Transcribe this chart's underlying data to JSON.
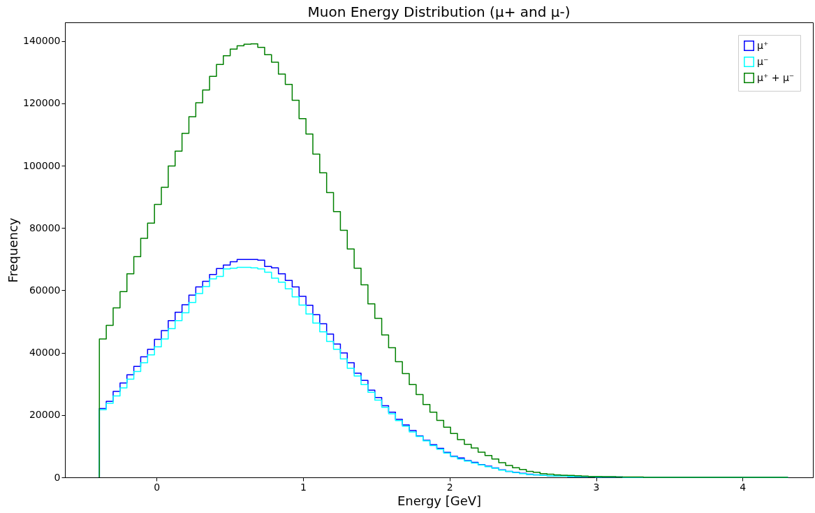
{
  "chart_data": {
    "type": "histogram",
    "title": "Muon Energy Distribution (μ+ and μ-)",
    "xlabel": "Energy [GeV]",
    "ylabel": "Frequency",
    "bins": [
      -0.39,
      -0.343,
      -0.296,
      -0.249,
      -0.202,
      -0.155,
      -0.108,
      -0.061,
      -0.014,
      0.033,
      0.08,
      0.127,
      0.174,
      0.221,
      0.268,
      0.315,
      0.362,
      0.409,
      0.456,
      0.503,
      0.55,
      0.597,
      0.644,
      0.691,
      0.738,
      0.785,
      0.832,
      0.879,
      0.926,
      0.973,
      1.02,
      1.067,
      1.114,
      1.161,
      1.208,
      1.255,
      1.302,
      1.349,
      1.396,
      1.443,
      1.49,
      1.537,
      1.584,
      1.631,
      1.678,
      1.725,
      1.772,
      1.819,
      1.866,
      1.913,
      1.96,
      2.007,
      2.054,
      2.101,
      2.148,
      2.195,
      2.242,
      2.289,
      2.336,
      2.383,
      2.43,
      2.477,
      2.524,
      2.571,
      2.618,
      2.665,
      2.712,
      2.759,
      2.806,
      2.853,
      2.9,
      2.947,
      2.994,
      3.041,
      3.088,
      3.135,
      3.182,
      3.229,
      3.276,
      3.323,
      3.37,
      3.417,
      3.464,
      3.511,
      3.558,
      3.605,
      3.652,
      3.699,
      3.746,
      3.793,
      3.84,
      3.887,
      3.934,
      3.981,
      4.028,
      4.075,
      4.122,
      4.169,
      4.216,
      4.263,
      4.31
    ],
    "series": [
      {
        "name": "μ⁺",
        "color": "#0000ff",
        "values": [
          22100,
          24400,
          27600,
          30300,
          32900,
          35600,
          38700,
          41100,
          44300,
          47100,
          50300,
          53000,
          55400,
          58500,
          61100,
          62900,
          65100,
          67000,
          68100,
          69200,
          69900,
          69900,
          69900,
          69700,
          67700,
          67200,
          65300,
          63200,
          61100,
          58100,
          55200,
          52200,
          49300,
          46000,
          42800,
          39900,
          36800,
          33400,
          31100,
          28000,
          25600,
          23000,
          20900,
          18600,
          16800,
          15000,
          13300,
          11900,
          10500,
          9300,
          8000,
          6800,
          6200,
          5400,
          4800,
          4100,
          3600,
          3000,
          2400,
          1900,
          1600,
          1300,
          1000,
          800,
          600,
          500,
          400,
          400,
          300,
          200,
          200,
          200,
          100,
          100,
          100,
          100,
          0,
          0,
          0,
          0,
          0,
          0,
          0,
          0,
          0,
          0,
          0,
          0,
          0,
          0,
          0,
          0,
          0,
          0,
          0,
          0,
          0,
          0,
          0,
          0
        ]
      },
      {
        "name": "μ⁻",
        "color": "#00ffff",
        "values": [
          21700,
          23800,
          26100,
          28700,
          31500,
          34000,
          36800,
          39300,
          41900,
          44400,
          47700,
          50300,
          52800,
          56100,
          59000,
          61200,
          63700,
          64500,
          66900,
          67100,
          67400,
          67400,
          67200,
          66900,
          65800,
          63900,
          62600,
          60500,
          57900,
          55300,
          52400,
          49500,
          46700,
          43600,
          41100,
          38000,
          35000,
          32500,
          29800,
          27300,
          24800,
          22500,
          20400,
          18200,
          16400,
          14600,
          13100,
          11700,
          10200,
          9000,
          7800,
          6600,
          5900,
          5200,
          4600,
          4000,
          3400,
          2900,
          2300,
          1900,
          1500,
          1200,
          900,
          800,
          600,
          500,
          400,
          400,
          300,
          200,
          200,
          200,
          100,
          100,
          100,
          100,
          0,
          0,
          0,
          0,
          0,
          0,
          0,
          0,
          0,
          0,
          0,
          0,
          0,
          0,
          0,
          0,
          0,
          0,
          0,
          0,
          0,
          0,
          0,
          0
        ]
      },
      {
        "name": "μ⁺ + μ⁻",
        "color": "#008000",
        "values": [
          44400,
          48800,
          54400,
          59600,
          65300,
          70800,
          76700,
          81600,
          87600,
          93100,
          99900,
          104700,
          110400,
          115700,
          120200,
          124300,
          128700,
          132500,
          135300,
          137400,
          138500,
          139000,
          139100,
          138000,
          135600,
          133200,
          129400,
          126100,
          121000,
          115100,
          110200,
          103700,
          97700,
          91400,
          85300,
          79300,
          73300,
          67100,
          61800,
          55700,
          51000,
          45700,
          41600,
          37100,
          33300,
          29800,
          26600,
          23400,
          20900,
          18300,
          16100,
          14100,
          12100,
          10600,
          9400,
          8100,
          7000,
          5900,
          4700,
          3800,
          3100,
          2500,
          1900,
          1600,
          1200,
          1000,
          800,
          700,
          600,
          500,
          400,
          300,
          300,
          200,
          200,
          100,
          100,
          100,
          100,
          0,
          0,
          0,
          0,
          0,
          0,
          0,
          0,
          0,
          0,
          0,
          0,
          0,
          0,
          0,
          0,
          0,
          0,
          0,
          0,
          0
        ]
      }
    ],
    "xlim": [
      -0.625,
      4.48
    ],
    "xticks": [
      0,
      1,
      2,
      3,
      4
    ],
    "ylim": [
      0,
      146000
    ],
    "yticks": [
      0,
      20000,
      40000,
      60000,
      80000,
      100000,
      120000,
      140000
    ],
    "grid": false,
    "legend": "top right"
  }
}
